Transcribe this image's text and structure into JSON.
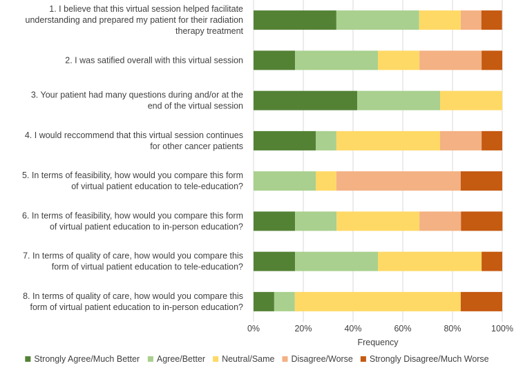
{
  "chart_data": {
    "type": "bar",
    "orientation": "horizontal",
    "stacked": "percent",
    "title": "",
    "xlabel": "Frequency",
    "ylabel": "",
    "xlim": [
      0,
      100
    ],
    "x_ticks": [
      "0%",
      "20%",
      "40%",
      "60%",
      "80%",
      "100%"
    ],
    "grid": true,
    "legend_position": "bottom",
    "categories": [
      [
        "1. I believe that this virtual session helped facilitate",
        "understanding and prepared my patient for their radiation",
        "therapy treatment"
      ],
      [
        "2. I was satified overall with this virtual session"
      ],
      [
        "3. Your patient had many questions during and/or at the",
        "end of the virtual session"
      ],
      [
        "4. I would reccommend that this virtual session continues",
        "for other cancer patients"
      ],
      [
        "5. In terms of feasibility, how would you compare this form",
        "of virtual patient education to tele-education?"
      ],
      [
        "6. In terms of feasibility, how would you compare this form",
        "of virtual patient education to in-person education?"
      ],
      [
        "7. In terms of quality of care, how would you compare this",
        "form of virtual patient education to tele-education?"
      ],
      [
        "8. In terms of quality of care, how would you compare this",
        "form of virtual patient education to in-person education?"
      ]
    ],
    "series": [
      {
        "name": "Strongly Agree/Much Better",
        "color": "#548235",
        "values": [
          33.3,
          16.7,
          41.7,
          25.0,
          0,
          16.7,
          16.7,
          8.3
        ]
      },
      {
        "name": "Agree/Better",
        "color": "#a9d08e",
        "values": [
          33.3,
          33.3,
          33.3,
          8.3,
          25.0,
          16.7,
          33.3,
          8.3
        ]
      },
      {
        "name": "Neutral/Same",
        "color": "#ffd966",
        "values": [
          16.7,
          16.7,
          25.0,
          41.7,
          8.3,
          33.3,
          41.7,
          66.7
        ]
      },
      {
        "name": "Disagree/Worse",
        "color": "#f4b183",
        "values": [
          8.3,
          25.0,
          0,
          16.7,
          50.0,
          16.7,
          0,
          0
        ]
      },
      {
        "name": "Strongly Disagree/Much Worse",
        "color": "#c55a11",
        "values": [
          8.3,
          8.3,
          0,
          8.3,
          16.7,
          16.7,
          8.3,
          16.7
        ]
      }
    ]
  }
}
